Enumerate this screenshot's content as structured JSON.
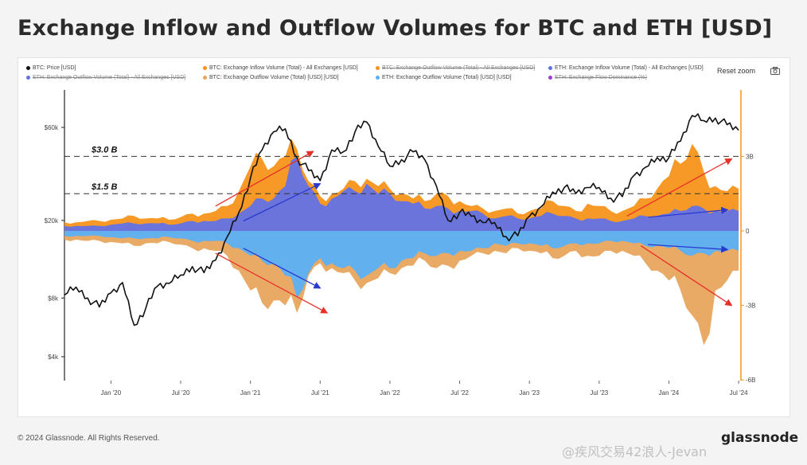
{
  "title": "Exchange Inflow and Outflow Volumes for BTC and ETH [USD]",
  "toolbar": {
    "reset_label": "Reset zoom",
    "camera_icon": "camera-icon"
  },
  "footer": {
    "copyright": "© 2024 Glassnode. All Rights Reserved.",
    "brand": "glassnode",
    "watermark": "@疾风交易42浪人-Jevan"
  },
  "colors": {
    "btc_price": "#111111",
    "btc_inflow": "#f7931a",
    "btc_outflow": "#e8a55e",
    "eth_inflow": "#6272e4",
    "eth_outflow": "#5bb0f5",
    "dominance": "#9b3fd6",
    "arrow_red": "#e8302a",
    "arrow_blue": "#2a38d0",
    "axis_orange": "#f7931a"
  },
  "legend": [
    {
      "label": "BTC: Price [USD]",
      "color": "#111111",
      "struck": false
    },
    {
      "label": "BTC: Exchange Inflow Volume (Total) - All Exchanges [USD]",
      "color": "#f7931a",
      "struck": false
    },
    {
      "label": "BTC: Exchange Outflow Volume (Total) - All Exchanges [USD]",
      "color": "#f7931a",
      "struck": true
    },
    {
      "label": "ETH: Exchange Inflow Volume (Total) - All Exchanges [USD]",
      "color": "#6272e4",
      "struck": false
    },
    {
      "label": "ETH: Exchange Outflow Volume (Total) - All Exchanges [USD]",
      "color": "#6272e4",
      "struck": true
    },
    {
      "label": "BTC: Exchange Outflow Volume (Total) [USD] [USD]",
      "color": "#e8a55e",
      "struck": false
    },
    {
      "label": "ETH: Exchange Outflow Volume (Total) [USD] [USD]",
      "color": "#5bb0f5",
      "struck": false
    },
    {
      "label": "ETH: Exchange Flow Dominance (%)",
      "color": "#9b3fd6",
      "struck": true
    }
  ],
  "chart_data": {
    "type": "area",
    "x_ticks": [
      "Jan '20",
      "Jul '20",
      "Jan '21",
      "Jul '21",
      "Jan '22",
      "Jul '22",
      "Jan '23",
      "Jul '23",
      "Jan '24",
      "Jul '24"
    ],
    "x": [
      "2019-09",
      "2019-10",
      "2019-11",
      "2019-12",
      "2020-01",
      "2020-02",
      "2020-03",
      "2020-04",
      "2020-05",
      "2020-06",
      "2020-07",
      "2020-08",
      "2020-09",
      "2020-10",
      "2020-11",
      "2020-12",
      "2021-01",
      "2021-02",
      "2021-03",
      "2021-04",
      "2021-05",
      "2021-06",
      "2021-07",
      "2021-08",
      "2021-09",
      "2021-10",
      "2021-11",
      "2021-12",
      "2022-01",
      "2022-02",
      "2022-03",
      "2022-04",
      "2022-05",
      "2022-06",
      "2022-07",
      "2022-08",
      "2022-09",
      "2022-10",
      "2022-11",
      "2022-12",
      "2023-01",
      "2023-02",
      "2023-03",
      "2023-04",
      "2023-05",
      "2023-06",
      "2023-07",
      "2023-08",
      "2023-09",
      "2023-10",
      "2023-11",
      "2023-12",
      "2024-01",
      "2024-02",
      "2024-03",
      "2024-04",
      "2024-05",
      "2024-06",
      "2024-07"
    ],
    "left_axis": {
      "label": "BTC: Price [USD]",
      "scale": "log",
      "ticks": [
        "$4k",
        "$8k",
        "$20k",
        "$60k"
      ],
      "tick_values": [
        4000,
        8000,
        20000,
        60000
      ],
      "range": [
        4000,
        90000
      ]
    },
    "right_axis": {
      "ticks": [
        "3B",
        "0",
        "-3B",
        "-6B"
      ],
      "tick_values": [
        3,
        0,
        -3,
        -6
      ],
      "range": [
        -6,
        6
      ],
      "unit": "USD billions"
    },
    "annotations": [
      {
        "label": "$3.0 B",
        "value": 3.0
      },
      {
        "label": "$1.5 B",
        "value": 1.5
      }
    ],
    "series": [
      {
        "name": "BTC: Price [USD]",
        "axis": "left",
        "values": [
          8300,
          9100,
          8000,
          7200,
          8500,
          9600,
          5800,
          7100,
          9200,
          9500,
          10500,
          11600,
          10800,
          12500,
          16500,
          22000,
          33000,
          46000,
          57000,
          59000,
          42000,
          36000,
          32000,
          46000,
          45000,
          57000,
          64000,
          48000,
          38000,
          41000,
          45000,
          41000,
          30000,
          20000,
          22000,
          21000,
          19500,
          19500,
          16500,
          16700,
          21000,
          23500,
          28000,
          29500,
          27500,
          29500,
          29500,
          26000,
          26500,
          34000,
          37500,
          42000,
          42000,
          51000,
          69000,
          65000,
          67000,
          62000,
          58000
        ]
      },
      {
        "name": "BTC: Exchange Inflow Volume (Total) - All Exchanges [USD]",
        "axis": "right",
        "values": [
          0.35,
          0.35,
          0.4,
          0.4,
          0.45,
          0.5,
          0.6,
          0.5,
          0.5,
          0.45,
          0.55,
          0.7,
          0.7,
          0.8,
          1.0,
          1.6,
          2.6,
          2.9,
          2.6,
          3.0,
          3.3,
          2.0,
          1.4,
          1.5,
          1.7,
          2.0,
          2.1,
          1.8,
          1.7,
          1.5,
          1.3,
          1.2,
          1.5,
          1.4,
          1.2,
          1.0,
          0.9,
          0.8,
          0.9,
          0.7,
          0.8,
          0.9,
          1.2,
          1.0,
          0.8,
          1.1,
          1.0,
          0.8,
          0.8,
          1.0,
          1.3,
          1.7,
          2.2,
          2.7,
          3.5,
          2.4,
          1.8,
          1.6,
          1.7
        ]
      },
      {
        "name": "ETH: Exchange Inflow Volume (Total) - All Exchanges [USD]",
        "axis": "right",
        "values": [
          0.2,
          0.2,
          0.2,
          0.2,
          0.25,
          0.3,
          0.3,
          0.3,
          0.3,
          0.25,
          0.3,
          0.4,
          0.4,
          0.4,
          0.5,
          0.7,
          1.0,
          1.3,
          1.3,
          1.8,
          3.0,
          1.8,
          1.1,
          1.3,
          1.6,
          1.6,
          1.9,
          1.5,
          1.5,
          1.2,
          1.1,
          0.9,
          1.0,
          0.9,
          0.8,
          0.8,
          0.7,
          0.5,
          0.6,
          0.5,
          0.5,
          0.6,
          0.7,
          0.6,
          0.5,
          0.5,
          0.5,
          0.4,
          0.4,
          0.5,
          0.6,
          0.6,
          0.7,
          0.8,
          1.0,
          0.9,
          0.8,
          0.8,
          0.8
        ]
      },
      {
        "name": "BTC: Exchange Outflow Volume (Total) [USD] [USD]",
        "axis": "right",
        "values": [
          -0.35,
          -0.35,
          -0.4,
          -0.4,
          -0.45,
          -0.5,
          -0.6,
          -0.5,
          -0.5,
          -0.45,
          -0.55,
          -0.7,
          -0.7,
          -0.8,
          -1.0,
          -1.6,
          -2.4,
          -2.9,
          -2.8,
          -3.0,
          -3.3,
          -1.8,
          -1.3,
          -1.5,
          -1.7,
          -2.0,
          -2.1,
          -1.9,
          -1.7,
          -1.5,
          -1.4,
          -1.2,
          -1.5,
          -1.4,
          -1.2,
          -1.0,
          -0.9,
          -0.8,
          -0.9,
          -0.7,
          -0.8,
          -0.9,
          -1.1,
          -1.0,
          -0.8,
          -1.0,
          -1.0,
          -0.8,
          -0.8,
          -1.0,
          -1.3,
          -1.6,
          -2.0,
          -2.4,
          -3.4,
          -4.6,
          -2.4,
          -2.0,
          -1.6
        ]
      },
      {
        "name": "ETH: Exchange Outflow Volume (Total) [USD] [USD]",
        "axis": "right",
        "values": [
          -0.2,
          -0.2,
          -0.2,
          -0.2,
          -0.25,
          -0.3,
          -0.3,
          -0.3,
          -0.3,
          -0.25,
          -0.3,
          -0.4,
          -0.4,
          -0.4,
          -0.5,
          -0.7,
          -1.0,
          -1.2,
          -1.3,
          -1.8,
          -2.7,
          -1.7,
          -1.1,
          -1.3,
          -1.5,
          -1.6,
          -1.8,
          -1.5,
          -1.5,
          -1.2,
          -1.1,
          -0.9,
          -1.0,
          -0.9,
          -0.8,
          -0.8,
          -0.7,
          -0.5,
          -0.6,
          -0.5,
          -0.5,
          -0.6,
          -0.7,
          -0.6,
          -0.5,
          -0.5,
          -0.5,
          -0.4,
          -0.4,
          -0.5,
          -0.6,
          -0.6,
          -0.7,
          -0.8,
          -1.0,
          -0.9,
          -0.8,
          -0.8,
          -0.8
        ]
      }
    ]
  }
}
